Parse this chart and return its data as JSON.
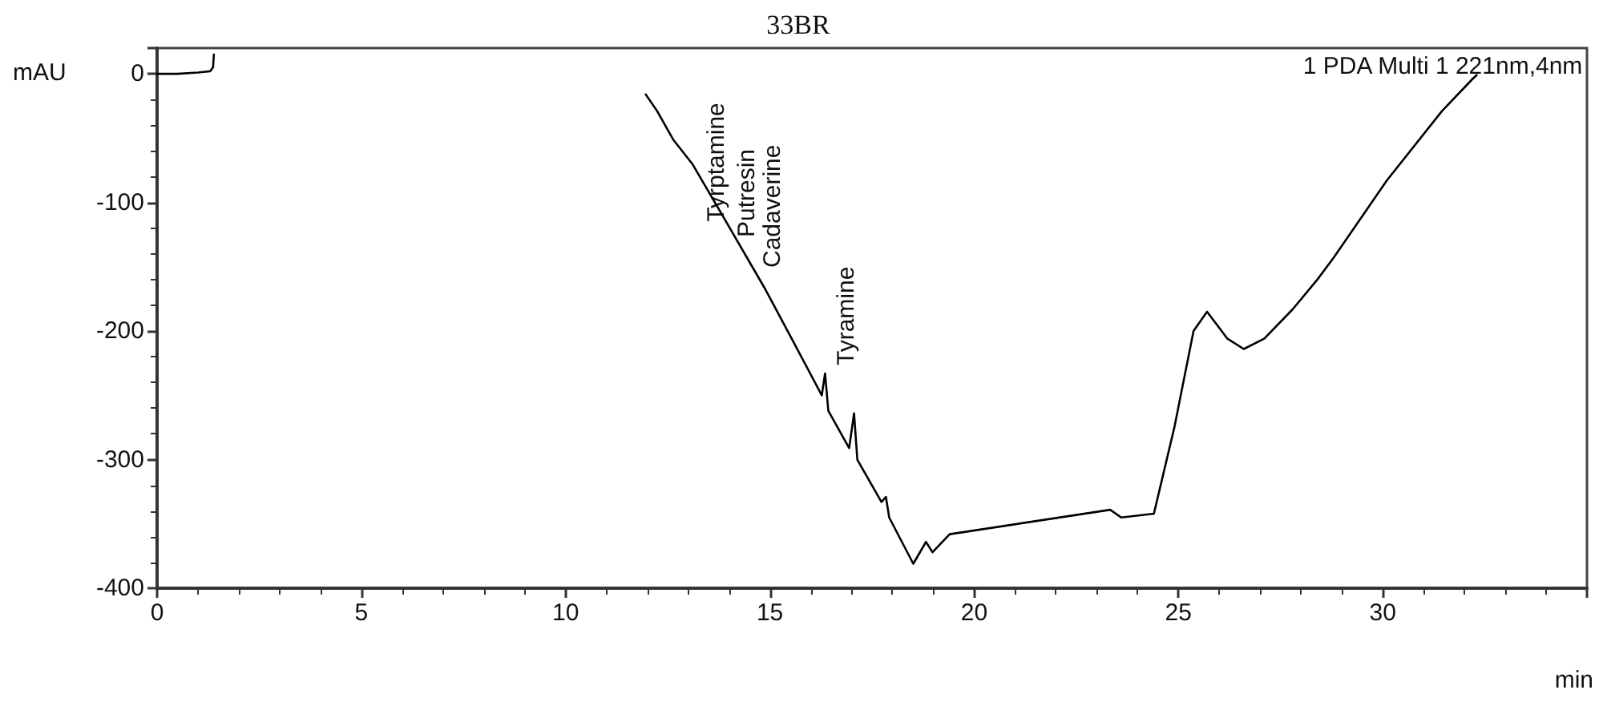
{
  "chart_data": {
    "type": "line",
    "title": "33BR",
    "xlabel": "min",
    "ylabel": "mAU",
    "annotations": [
      "1 PDA Multi 1 221nm,4nm",
      {
        "text": "Tyrptamine",
        "x": 13.7,
        "y": -115
      },
      "Putresin",
      "Cadaverine",
      "Tyramine"
    ],
    "x": [
      0,
      0.5,
      1.0,
      1.3,
      1.37,
      1.39,
      1.4,
      11.95,
      11.96,
      12.24,
      12.63,
      13.1,
      13.8,
      14.86,
      15.5,
      16.27,
      16.35,
      16.43,
      16.94,
      17.06,
      17.14,
      17.73,
      17.84,
      17.92,
      18.51,
      18.82,
      18.98,
      19.4,
      22.3,
      23.33,
      23.6,
      24.4,
      24.9,
      25.37,
      25.7,
      26.2,
      26.6,
      27.1,
      27.8,
      28.4,
      28.8,
      30.1,
      31.45,
      32.2,
      32.3
    ],
    "values": [
      0,
      0,
      1,
      2,
      5,
      15,
      null,
      null,
      -16,
      -29,
      -51,
      -70,
      -108,
      -166,
      -204,
      -250,
      -233,
      -262,
      -291,
      -264,
      -300,
      -333,
      -329,
      -345,
      -381,
      -364,
      -372,
      -358,
      -344,
      -339,
      -345,
      -342,
      -275,
      -200,
      -185,
      -206,
      -214,
      -206,
      -183,
      -160,
      -143,
      -83,
      -29,
      -4,
      -1
    ],
    "color": "#000000",
    "xlim": [
      0,
      35
    ],
    "ylim": [
      -400,
      20
    ],
    "xticks": [
      0,
      5,
      10,
      15,
      20,
      25,
      30
    ],
    "yticks": [
      -400,
      -300,
      -200,
      -100,
      0
    ],
    "grid": false,
    "marker": "none",
    "line_style": "solid"
  }
}
